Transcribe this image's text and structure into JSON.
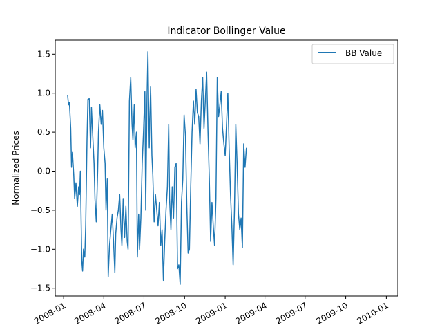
{
  "chart_data": {
    "type": "line",
    "title": "Indicator Bollinger Value",
    "xlabel": "",
    "ylabel": "Normalized Prices",
    "x_type": "date",
    "x_range": [
      "2007-12-13",
      "2010-01-27"
    ],
    "ylim": [
      -1.6,
      1.68
    ],
    "grid": false,
    "legend_position": "top-right",
    "x_ticks": [
      "2008-01",
      "2008-04",
      "2008-07",
      "2008-10",
      "2009-01",
      "2009-04",
      "2009-07",
      "2009-10",
      "2010-01"
    ],
    "x_tick_dates": [
      "2008-01-01",
      "2008-04-01",
      "2008-07-01",
      "2008-10-01",
      "2009-01-01",
      "2009-04-01",
      "2009-07-01",
      "2009-10-01",
      "2010-01-01"
    ],
    "y_ticks": [
      -1.5,
      -1.0,
      -0.5,
      0.0,
      0.5,
      1.0,
      1.5
    ],
    "y_tick_labels": [
      "−1.5",
      "−1.0",
      "−0.5",
      "0.0",
      "0.5",
      "1.0",
      "1.5"
    ],
    "series": [
      {
        "name": "BB Value",
        "color": "#1f77b4",
        "points": [
          [
            "2008-01-10",
            0.98
          ],
          [
            "2008-01-12",
            0.85
          ],
          [
            "2008-01-14",
            0.88
          ],
          [
            "2008-01-17",
            0.55
          ],
          [
            "2008-01-19",
            0.05
          ],
          [
            "2008-01-21",
            0.24
          ],
          [
            "2008-01-24",
            -0.05
          ],
          [
            "2008-01-26",
            -0.35
          ],
          [
            "2008-01-29",
            -0.15
          ],
          [
            "2008-02-01",
            -0.45
          ],
          [
            "2008-02-04",
            -0.2
          ],
          [
            "2008-02-06",
            -0.3
          ],
          [
            "2008-02-08",
            0.0
          ],
          [
            "2008-02-11",
            -1.15
          ],
          [
            "2008-02-13",
            -1.28
          ],
          [
            "2008-02-15",
            -1.0
          ],
          [
            "2008-02-18",
            -1.1
          ],
          [
            "2008-02-20",
            -0.7
          ],
          [
            "2008-02-23",
            0.4
          ],
          [
            "2008-02-25",
            0.92
          ],
          [
            "2008-02-28",
            0.93
          ],
          [
            "2008-03-02",
            0.3
          ],
          [
            "2008-03-04",
            0.82
          ],
          [
            "2008-03-07",
            0.45
          ],
          [
            "2008-03-10",
            0.1
          ],
          [
            "2008-03-12",
            -0.35
          ],
          [
            "2008-03-15",
            -0.65
          ],
          [
            "2008-03-18",
            0.0
          ],
          [
            "2008-03-20",
            0.5
          ],
          [
            "2008-03-23",
            0.85
          ],
          [
            "2008-03-26",
            0.6
          ],
          [
            "2008-03-29",
            0.78
          ],
          [
            "2008-04-01",
            0.3
          ],
          [
            "2008-04-04",
            0.1
          ],
          [
            "2008-04-06",
            -0.5
          ],
          [
            "2008-04-09",
            -0.1
          ],
          [
            "2008-04-11",
            -1.35
          ],
          [
            "2008-04-14",
            -0.95
          ],
          [
            "2008-04-17",
            -0.75
          ],
          [
            "2008-04-20",
            -0.55
          ],
          [
            "2008-04-23",
            -0.9
          ],
          [
            "2008-04-26",
            -1.3
          ],
          [
            "2008-04-28",
            -0.8
          ],
          [
            "2008-05-01",
            -0.6
          ],
          [
            "2008-05-04",
            -0.5
          ],
          [
            "2008-05-07",
            -0.3
          ],
          [
            "2008-05-10",
            -0.75
          ],
          [
            "2008-05-12",
            -0.95
          ],
          [
            "2008-05-15",
            -0.35
          ],
          [
            "2008-05-18",
            -0.85
          ],
          [
            "2008-05-21",
            -0.45
          ],
          [
            "2008-05-24",
            -0.9
          ],
          [
            "2008-05-26",
            -1.0
          ],
          [
            "2008-05-29",
            0.9
          ],
          [
            "2008-06-01",
            1.2
          ],
          [
            "2008-06-04",
            0.6
          ],
          [
            "2008-06-06",
            0.4
          ],
          [
            "2008-06-09",
            0.85
          ],
          [
            "2008-06-11",
            0.3
          ],
          [
            "2008-06-14",
            0.5
          ],
          [
            "2008-06-16",
            -1.1
          ],
          [
            "2008-06-19",
            -0.55
          ],
          [
            "2008-06-21",
            -1.0
          ],
          [
            "2008-06-24",
            -0.6
          ],
          [
            "2008-06-27",
            0.1
          ],
          [
            "2008-06-30",
            0.5
          ],
          [
            "2008-07-03",
            1.02
          ],
          [
            "2008-07-05",
            -0.5
          ],
          [
            "2008-07-08",
            0.95
          ],
          [
            "2008-07-10",
            1.53
          ],
          [
            "2008-07-13",
            0.3
          ],
          [
            "2008-07-16",
            1.08
          ],
          [
            "2008-07-19",
            0.2
          ],
          [
            "2008-07-21",
            -0.05
          ],
          [
            "2008-07-24",
            -0.65
          ],
          [
            "2008-07-27",
            -0.3
          ],
          [
            "2008-07-30",
            -0.5
          ],
          [
            "2008-08-02",
            -0.7
          ],
          [
            "2008-08-05",
            -0.4
          ],
          [
            "2008-08-08",
            -0.95
          ],
          [
            "2008-08-11",
            -0.75
          ],
          [
            "2008-08-14",
            -1.4
          ],
          [
            "2008-08-17",
            -0.9
          ],
          [
            "2008-08-20",
            -0.5
          ],
          [
            "2008-08-23",
            -0.2
          ],
          [
            "2008-08-26",
            0.6
          ],
          [
            "2008-08-28",
            -0.35
          ],
          [
            "2008-08-31",
            -0.75
          ],
          [
            "2008-09-03",
            -0.2
          ],
          [
            "2008-09-06",
            -0.6
          ],
          [
            "2008-09-09",
            0.05
          ],
          [
            "2008-09-12",
            0.1
          ],
          [
            "2008-09-15",
            -1.25
          ],
          [
            "2008-09-18",
            -1.2
          ],
          [
            "2008-09-21",
            -1.45
          ],
          [
            "2008-09-24",
            -0.4
          ],
          [
            "2008-09-27",
            -0.1
          ],
          [
            "2008-09-30",
            0.72
          ],
          [
            "2008-10-03",
            0.45
          ],
          [
            "2008-10-06",
            -0.45
          ],
          [
            "2008-10-09",
            -1.05
          ],
          [
            "2008-10-12",
            -1.0
          ],
          [
            "2008-10-15",
            -0.2
          ],
          [
            "2008-10-18",
            0.5
          ],
          [
            "2008-10-21",
            0.9
          ],
          [
            "2008-10-24",
            0.6
          ],
          [
            "2008-10-27",
            1.05
          ],
          [
            "2008-10-30",
            0.75
          ],
          [
            "2008-11-02",
            0.7
          ],
          [
            "2008-11-05",
            0.35
          ],
          [
            "2008-11-08",
            0.9
          ],
          [
            "2008-11-11",
            1.2
          ],
          [
            "2008-11-14",
            0.55
          ],
          [
            "2008-11-17",
            0.9
          ],
          [
            "2008-11-20",
            1.27
          ],
          [
            "2008-11-23",
            0.5
          ],
          [
            "2008-11-26",
            -0.1
          ],
          [
            "2008-11-29",
            -0.9
          ],
          [
            "2008-12-02",
            -0.4
          ],
          [
            "2008-12-05",
            -0.7
          ],
          [
            "2008-12-08",
            -0.95
          ],
          [
            "2008-12-11",
            -0.35
          ],
          [
            "2008-12-14",
            1.2
          ],
          [
            "2008-12-17",
            0.7
          ],
          [
            "2008-12-20",
            0.85
          ],
          [
            "2008-12-23",
            1.02
          ],
          [
            "2008-12-26",
            0.55
          ],
          [
            "2008-12-29",
            0.35
          ],
          [
            "2009-01-01",
            0.2
          ],
          [
            "2009-01-04",
            0.6
          ],
          [
            "2009-01-07",
            1.0
          ],
          [
            "2009-01-10",
            0.3
          ],
          [
            "2009-01-13",
            -0.3
          ],
          [
            "2009-01-16",
            -0.7
          ],
          [
            "2009-01-19",
            -1.2
          ],
          [
            "2009-01-22",
            -0.5
          ],
          [
            "2009-01-25",
            0.6
          ],
          [
            "2009-01-28",
            0.1
          ],
          [
            "2009-01-31",
            -0.55
          ],
          [
            "2009-02-03",
            -0.75
          ],
          [
            "2009-02-06",
            -0.6
          ],
          [
            "2009-02-09",
            -0.98
          ],
          [
            "2009-02-12",
            0.35
          ],
          [
            "2009-02-15",
            0.05
          ],
          [
            "2009-02-18",
            0.3
          ]
        ]
      }
    ]
  }
}
